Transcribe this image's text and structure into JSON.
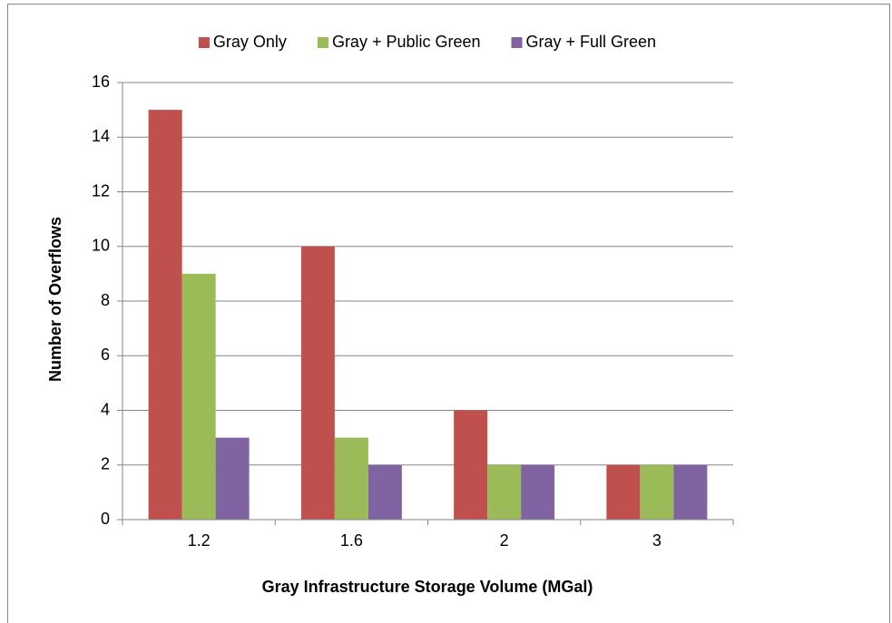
{
  "chart_data": {
    "type": "bar",
    "x_label": "Gray Infrastructure Storage Volume (MGal)",
    "y_label": "Number of Overflows",
    "categories": [
      "1.2",
      "1.6",
      "2",
      "3"
    ],
    "series": [
      {
        "name": "Gray Only",
        "color": "#c0504d",
        "values": [
          15,
          10,
          4,
          2
        ]
      },
      {
        "name": "Gray + Public Green",
        "color": "#9bbb59",
        "values": [
          9,
          3,
          2,
          2
        ]
      },
      {
        "name": "Gray + Full Green",
        "color": "#8064a2",
        "values": [
          3,
          2,
          2,
          2
        ]
      }
    ],
    "ylim": [
      0,
      16
    ],
    "yticks": [
      0,
      2,
      4,
      6,
      8,
      10,
      12,
      14,
      16
    ],
    "grid": true,
    "legend": "top"
  }
}
